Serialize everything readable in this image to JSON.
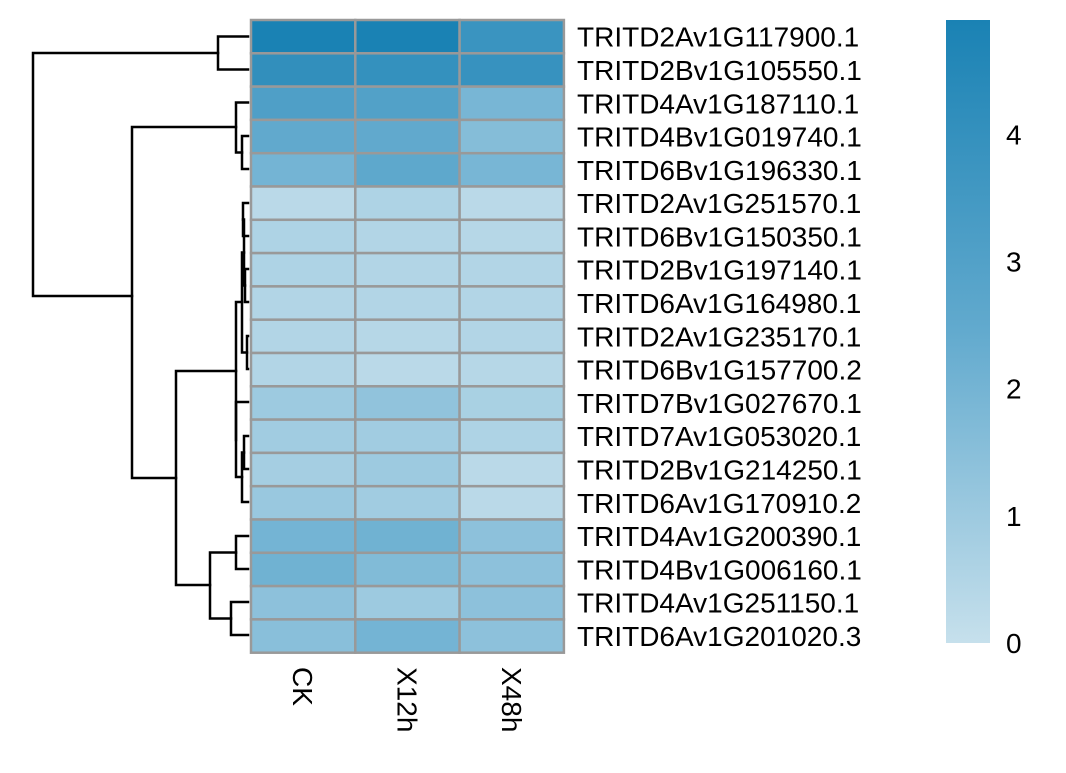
{
  "chart_data": {
    "type": "heatmap",
    "title": "",
    "xlabel": "",
    "ylabel": "",
    "columns": [
      "CK",
      "X12h",
      "X48h"
    ],
    "rows": [
      "TRITD2Av1G117900.1",
      "TRITD2Bv1G105550.1",
      "TRITD4Av1G187110.1",
      "TRITD4Bv1G019740.1",
      "TRITD6Bv1G196330.1",
      "TRITD2Av1G251570.1",
      "TRITD6Bv1G150350.1",
      "TRITD2Bv1G197140.1",
      "TRITD6Av1G164980.1",
      "TRITD2Av1G235170.1",
      "TRITD6Bv1G157700.2",
      "TRITD7Bv1G027670.1",
      "TRITD7Av1G053020.1",
      "TRITD2Bv1G214250.1",
      "TRITD6Av1G170910.2",
      "TRITD4Av1G200390.1",
      "TRITD4Bv1G006160.1",
      "TRITD4Av1G251150.1",
      "TRITD6Av1G201020.3"
    ],
    "values": [
      [
        4.9,
        4.9,
        3.8
      ],
      [
        4.1,
        4.0,
        3.9
      ],
      [
        3.1,
        3.0,
        1.9
      ],
      [
        2.5,
        2.5,
        1.6
      ],
      [
        2.0,
        2.6,
        1.9
      ],
      [
        0.3,
        0.6,
        0.3
      ],
      [
        0.6,
        0.5,
        0.4
      ],
      [
        0.6,
        0.5,
        0.5
      ],
      [
        0.5,
        0.5,
        0.5
      ],
      [
        0.5,
        0.4,
        0.5
      ],
      [
        0.5,
        0.3,
        0.4
      ],
      [
        1.0,
        1.3,
        0.7
      ],
      [
        0.9,
        0.9,
        0.6
      ],
      [
        0.8,
        1.0,
        0.3
      ],
      [
        1.1,
        0.9,
        0.3
      ],
      [
        2.0,
        2.1,
        1.4
      ],
      [
        2.1,
        1.7,
        1.4
      ],
      [
        1.4,
        1.0,
        1.4
      ],
      [
        1.5,
        2.0,
        1.4
      ]
    ],
    "color_scale": {
      "min": 0,
      "max": 4.9,
      "low_color": "#c6e0ec",
      "mid_color": "#62aace",
      "high_color": "#1a82b4",
      "ticks": [
        0,
        1,
        2,
        3,
        4
      ]
    },
    "cell_border_color": "#999999",
    "dendrogram_color": "#000000",
    "row_label_position": "right",
    "column_label_rotation": "90"
  }
}
